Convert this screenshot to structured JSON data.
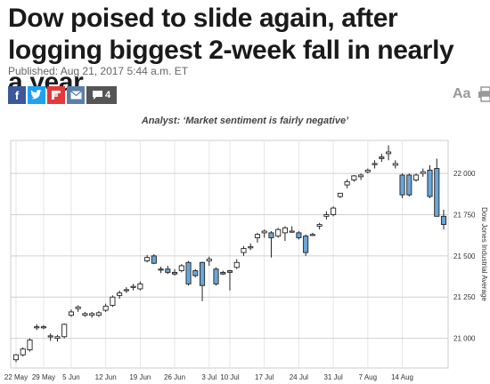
{
  "article": {
    "title": "Dow poised to slide again, after logging biggest 2-week fall in nearly a year",
    "published": "Published: Aug 21, 2017 5:44 a.m. ET",
    "comment_count": "4",
    "font_control": "Aa"
  },
  "chart_data": {
    "type": "candlestick",
    "title": "Analyst: ‘Market sentiment is fairly negative’",
    "ylabel": "Dow Jones Industrial Average",
    "ylim": [
      20820,
      22200
    ],
    "yticks": [
      21000,
      21250,
      21500,
      21750,
      22000
    ],
    "ytick_labels": [
      "21 000",
      "21 250",
      "21 500",
      "21 750",
      "22 000"
    ],
    "xticks": [
      {
        "label": "22 May",
        "index": 0
      },
      {
        "label": "29 May",
        "index": 4
      },
      {
        "label": "5 Jun",
        "index": 8
      },
      {
        "label": "12 Jun",
        "index": 13
      },
      {
        "label": "19 Jun",
        "index": 18
      },
      {
        "label": "26 Jun",
        "index": 23
      },
      {
        "label": "3 Jul",
        "index": 28
      },
      {
        "label": "10 Jul",
        "index": 31
      },
      {
        "label": "17 Jul",
        "index": 36
      },
      {
        "label": "24 Jul",
        "index": 41
      },
      {
        "label": "31 Jul",
        "index": 46
      },
      {
        "label": "7 Aug",
        "index": 51
      },
      {
        "label": "14 Aug",
        "index": 56
      }
    ],
    "candles": [
      [
        20870,
        20900,
        20855,
        20905
      ],
      [
        20900,
        20935,
        20890,
        20945
      ],
      [
        20930,
        20990,
        20920,
        21000
      ],
      [
        21065,
        21070,
        21050,
        21085
      ],
      [
        21065,
        21070,
        21055,
        21080
      ],
      [
        21010,
        21015,
        20985,
        21030
      ],
      [
        21000,
        21010,
        20980,
        21020
      ],
      [
        21010,
        21085,
        21000,
        21090
      ],
      [
        21140,
        21160,
        21130,
        21175
      ],
      [
        21180,
        21190,
        21160,
        21200
      ],
      [
        21140,
        21150,
        21130,
        21160
      ],
      [
        21140,
        21150,
        21125,
        21160
      ],
      [
        21140,
        21155,
        21130,
        21165
      ],
      [
        21170,
        21195,
        21160,
        21210
      ],
      [
        21200,
        21250,
        21190,
        21260
      ],
      [
        21260,
        21275,
        21240,
        21290
      ],
      [
        21290,
        21295,
        21275,
        21310
      ],
      [
        21310,
        21315,
        21290,
        21330
      ],
      [
        21300,
        21330,
        21290,
        21345
      ],
      [
        21470,
        21490,
        21460,
        21505
      ],
      [
        21500,
        21455,
        21450,
        21510
      ],
      [
        21420,
        21415,
        21395,
        21435
      ],
      [
        21420,
        21400,
        21390,
        21440
      ],
      [
        21400,
        21390,
        21380,
        21420
      ],
      [
        21410,
        21440,
        21400,
        21450
      ],
      [
        21460,
        21330,
        21320,
        21470
      ],
      [
        21410,
        21380,
        21370,
        21420
      ],
      [
        21460,
        21320,
        21225,
        21465
      ],
      [
        21470,
        21480,
        21440,
        21495
      ],
      [
        21420,
        21330,
        21320,
        21430
      ],
      [
        21400,
        21390,
        21385,
        21410
      ],
      [
        21410,
        21400,
        21290,
        21415
      ],
      [
        21430,
        21460,
        21420,
        21480
      ],
      [
        21520,
        21545,
        21500,
        21560
      ],
      [
        21550,
        21555,
        21535,
        21575
      ],
      [
        21610,
        21630,
        21580,
        21640
      ],
      [
        21640,
        21650,
        21610,
        21660
      ],
      [
        21640,
        21610,
        21490,
        21650
      ],
      [
        21620,
        21660,
        21610,
        21670
      ],
      [
        21640,
        21670,
        21590,
        21680
      ],
      [
        21650,
        21650,
        21640,
        21680
      ],
      [
        21640,
        21610,
        21600,
        21650
      ],
      [
        21620,
        21520,
        21500,
        21630
      ],
      [
        21630,
        21630,
        21620,
        21640
      ],
      [
        21680,
        21690,
        21660,
        21700
      ],
      [
        21740,
        21750,
        21720,
        21770
      ],
      [
        21750,
        21790,
        21740,
        21800
      ],
      [
        21860,
        21880,
        21850,
        21880
      ],
      [
        21930,
        21950,
        21910,
        21965
      ],
      [
        21960,
        21985,
        21950,
        21990
      ],
      [
        21980,
        21990,
        21960,
        22000
      ],
      [
        22010,
        22020,
        22000,
        22030
      ],
      [
        22060,
        22060,
        22030,
        22080
      ],
      [
        22100,
        22090,
        22070,
        22120
      ],
      [
        22120,
        22130,
        22080,
        22170
      ],
      [
        22050,
        22060,
        22030,
        22080
      ],
      [
        21990,
        21870,
        21850,
        22000
      ],
      [
        21990,
        21870,
        21860,
        22000
      ],
      [
        21960,
        21990,
        21950,
        22000
      ],
      [
        22000,
        22010,
        21980,
        22030
      ],
      [
        22020,
        21860,
        21850,
        22050
      ],
      [
        22030,
        21740,
        21740,
        22090
      ],
      [
        21740,
        21690,
        21660,
        21780
      ]
    ]
  }
}
